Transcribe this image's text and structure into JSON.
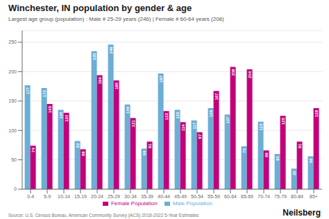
{
  "chart_data": {
    "type": "bar",
    "title": "Winchester, IN population by gender & age",
    "subtitle": "Largest age group (population) : Male # 25-29 years (246) | Female # 60-64 years (208)",
    "categories": [
      "0-4",
      "5-9",
      "10-14",
      "15-19",
      "20-24",
      "25-29",
      "30-34",
      "35-39",
      "40-44",
      "45-49",
      "50-54",
      "55-59",
      "60-64",
      "65-69",
      "70-74",
      "75-79",
      "80-84",
      "85+"
    ],
    "series": [
      {
        "name": "Male Population",
        "color": "#6baed6",
        "values": [
          177,
          172,
          135,
          82,
          235,
          246,
          144,
          69,
          197,
          135,
          117,
          138,
          127,
          73,
          115,
          60,
          35,
          56
        ]
      },
      {
        "name": "Female Population",
        "color": "#c2007a",
        "values": [
          74,
          145,
          130,
          68,
          194,
          185,
          121,
          81,
          133,
          114,
          97,
          167,
          208,
          204,
          66,
          125,
          81,
          138
        ]
      }
    ],
    "ylim": [
      0,
      270
    ],
    "yticks": [
      0,
      50,
      100,
      150,
      200,
      250
    ],
    "grid": true,
    "legend": "bottom",
    "data_labels": true,
    "annotations": [
      "Source: U.S. Census Bureau, American Community Survey (ACS) 2018-2022 5-Year Estimates",
      "Neilsberg"
    ]
  }
}
